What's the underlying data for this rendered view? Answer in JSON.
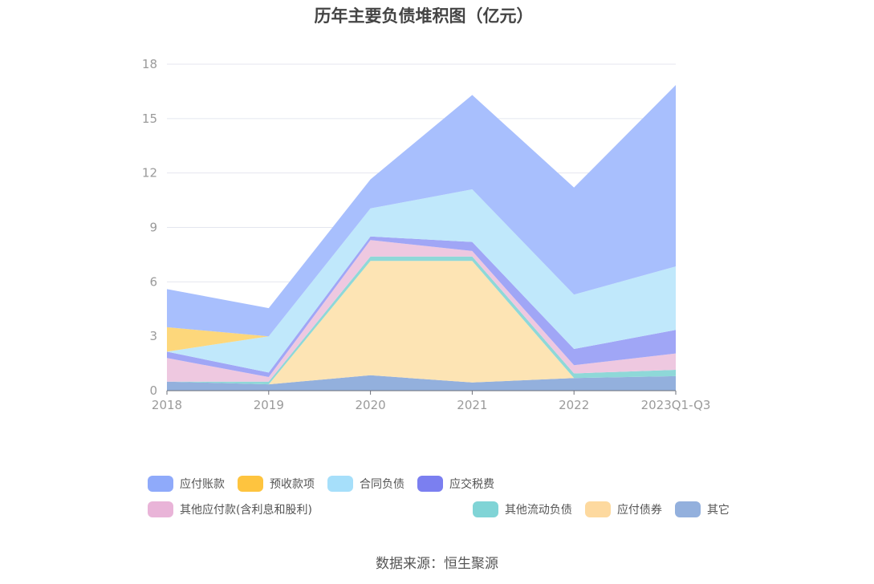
{
  "source_text": "数据来源：恒生聚源",
  "chart_data": {
    "type": "area",
    "stacked": true,
    "title": "历年主要负债堆积图（亿元）",
    "categories": [
      "2018",
      "2019",
      "2020",
      "2021",
      "2022",
      "2023Q1-Q3"
    ],
    "ylim": [
      0,
      18
    ],
    "yticks": [
      0,
      3,
      6,
      9,
      12,
      15,
      18
    ],
    "grid": true,
    "legend_position": "bottom",
    "series": [
      {
        "name": "其它",
        "color": "#93b0dd",
        "values": [
          0.5,
          0.35,
          0.85,
          0.45,
          0.7,
          0.8
        ]
      },
      {
        "name": "应付债券",
        "color": "#fde4b4",
        "values": [
          0,
          0,
          6.3,
          6.7,
          0,
          0
        ]
      },
      {
        "name": "其他流动负债",
        "color": "#8ed8d8",
        "values": [
          0,
          0.15,
          0.25,
          0.25,
          0.25,
          0.35
        ]
      },
      {
        "name": "其他应付款(含利息和股利)",
        "color": "#eec8e0",
        "values": [
          1.3,
          0.25,
          0.9,
          0.3,
          0.45,
          0.9
        ]
      },
      {
        "name": "应交税费",
        "color": "#a0a6f6",
        "values": [
          0.35,
          0.25,
          0.2,
          0.5,
          0.9,
          1.3
        ]
      },
      {
        "name": "合同负债",
        "color": "#c0e8fb",
        "values": [
          0,
          2.0,
          1.55,
          2.9,
          3.0,
          3.5
        ]
      },
      {
        "name": "预收款项",
        "color": "#fdd77b",
        "values": [
          1.35,
          0,
          0,
          0,
          0,
          0
        ]
      },
      {
        "name": "应付账款",
        "color": "#a8bffd",
        "values": [
          2.1,
          1.55,
          1.6,
          5.2,
          5.9,
          10.0
        ]
      }
    ],
    "legend": [
      {
        "name": "应付账款",
        "color": "#8faafa"
      },
      {
        "name": "预收款项",
        "color": "#fec43f"
      },
      {
        "name": "合同负债",
        "color": "#a6dffa"
      },
      {
        "name": "应交税费",
        "color": "#7b7ff0"
      },
      {
        "name": "其他应付款(含利息和股利)",
        "color": "#e9b4d8"
      },
      {
        "name": "其他流动负债",
        "color": "#80d4d6"
      },
      {
        "name": "应付债券",
        "color": "#fdd99f"
      },
      {
        "name": "其它",
        "color": "#93b0dd"
      }
    ]
  }
}
